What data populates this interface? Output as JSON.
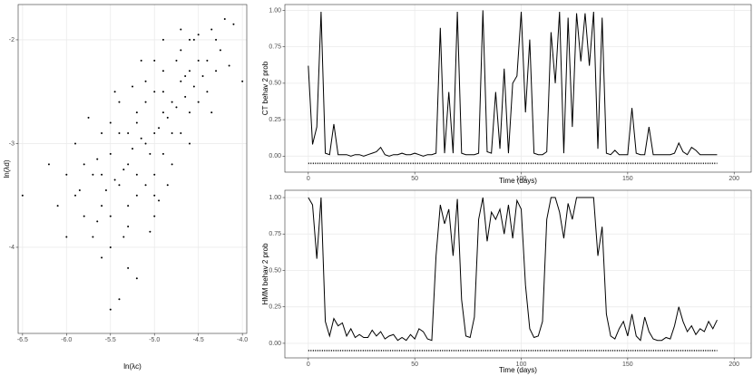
{
  "chart_data": [
    {
      "type": "scatter",
      "x_label": "ln(λc)",
      "y_label": "ln(λd)",
      "color": "#000000",
      "grid": true,
      "xlim": [
        -6.55,
        -3.95
      ],
      "ylim": [
        -4.83,
        -1.66
      ],
      "xticks": [
        -6.5,
        {
          "value": -6,
          "label": "-6.0"
        },
        -5.5,
        {
          "value": -5,
          "label": "-5.0"
        },
        -4.5,
        {
          "value": -4,
          "label": "-4.0"
        }
      ],
      "yticks": [
        -4,
        -3,
        -2
      ],
      "x": [
        -5.1,
        -5.3,
        -4.9,
        -5.0,
        -5.4,
        -4.8,
        -5.2,
        -5.0,
        -4.7,
        -5.5,
        -5.6,
        -4.6,
        -5.1,
        -5.3,
        -4.9,
        -5.2,
        -4.8,
        -5.0,
        -5.4,
        -4.5,
        -5.7,
        -4.4,
        -5.8,
        -4.3,
        -5.9,
        -5.0,
        -4.7,
        -5.3,
        -4.6,
        -5.5,
        -6.2,
        -4.2,
        -6.5,
        -4.1,
        -5.6,
        -5.4,
        -5.2,
        -4.0,
        -6.0,
        -4.9,
        -5.1,
        -5.15,
        -5.05,
        -4.95,
        -5.25,
        -4.85,
        -5.35,
        -4.75,
        -5.45,
        -4.65,
        -5.55,
        -4.55,
        -5.65,
        -4.45,
        -5.2,
        -5.0,
        -4.8,
        -5.4,
        -4.6,
        -5.6,
        -5.1,
        -5.3,
        -4.9,
        -5.7,
        -4.7,
        -5.2,
        -4.5,
        -5.8,
        -4.4,
        -5.0,
        -5.5,
        -4.6,
        -5.9,
        -4.3,
        -5.45,
        -4.85,
        -5.15,
        -5.35,
        -4.75,
        -5.05,
        -5.25,
        -4.95,
        -5.5,
        -4.55,
        -5.75,
        -4.35,
        -5.85,
        -4.25,
        -6.0,
        -4.15,
        -5.6,
        -4.9,
        -5.3,
        -4.7,
        -5.5,
        -4.5,
        -6.1,
        -4.35,
        -5.65,
        -4.65
      ],
      "y": [
        -3.0,
        -3.2,
        -2.7,
        -2.9,
        -3.4,
        -2.6,
        -2.8,
        -3.3,
        -2.4,
        -3.1,
        -3.6,
        -2.3,
        -2.6,
        -2.9,
        -3.1,
        -3.5,
        -2.9,
        -2.5,
        -2.9,
        -2.2,
        -3.3,
        -2.5,
        -3.7,
        -2.0,
        -3.5,
        -3.7,
        -2.1,
        -3.8,
        -2.7,
        -2.8,
        -3.2,
        -1.8,
        -3.5,
        -1.85,
        -4.1,
        -4.5,
        -4.3,
        -2.4,
        -3.9,
        -2.3,
        -3.4,
        -2.95,
        -3.1,
        -2.85,
        -3.05,
        -2.75,
        -3.25,
        -2.65,
        -3.35,
        -2.55,
        -3.45,
        -2.45,
        -3.15,
        -2.35,
        -2.7,
        -3.5,
        -3.2,
        -2.6,
        -3.0,
        -2.9,
        -2.4,
        -3.6,
        -2.5,
        -3.9,
        -2.9,
        -3.3,
        -2.6,
        -3.2,
        -2.2,
        -2.2,
        -3.7,
        -2.0,
        -3.0,
        -2.3,
        -2.5,
        -3.4,
        -2.2,
        -3.9,
        -2.2,
        -3.85,
        -2.45,
        -3.55,
        -4.0,
        -2.0,
        -2.75,
        -2.7,
        -3.45,
        -2.1,
        -3.3,
        -2.25,
        -3.3,
        -2.0,
        -4.2,
        -1.9,
        -4.6,
        -1.95,
        -3.6,
        -1.9,
        -3.75,
        -2.35
      ]
    },
    {
      "type": "line",
      "x_label": "Time (days)",
      "y_label": "CT behav 2 prob",
      "color": "#000000",
      "grid": true,
      "rug_y": -0.05,
      "xlim": [
        -11,
        208
      ],
      "ylim": [
        -0.11,
        1.04
      ],
      "xticks": [
        0,
        50,
        100,
        150,
        200
      ],
      "yticks": [
        {
          "value": 0,
          "label": "0.00"
        },
        {
          "value": 0.25,
          "label": "0.25"
        },
        {
          "value": 0.5,
          "label": "0.50"
        },
        {
          "value": 0.75,
          "label": "0.75"
        },
        {
          "value": 1,
          "label": "1.00"
        }
      ],
      "x": [
        0,
        2,
        4,
        6,
        8,
        10,
        12,
        14,
        16,
        18,
        20,
        22,
        24,
        26,
        28,
        30,
        32,
        34,
        36,
        38,
        40,
        42,
        44,
        46,
        48,
        50,
        52,
        54,
        56,
        58,
        60,
        62,
        64,
        66,
        68,
        70,
        72,
        74,
        76,
        78,
        80,
        82,
        84,
        86,
        88,
        90,
        92,
        94,
        96,
        98,
        100,
        102,
        104,
        106,
        108,
        110,
        112,
        114,
        116,
        118,
        120,
        122,
        124,
        126,
        128,
        130,
        132,
        134,
        136,
        138,
        140,
        142,
        144,
        146,
        148,
        150,
        152,
        154,
        156,
        158,
        160,
        162,
        164,
        166,
        168,
        170,
        172,
        174,
        176,
        178,
        180,
        182,
        184,
        186,
        188,
        190,
        192
      ],
      "values": [
        0.62,
        0.08,
        0.2,
        0.99,
        0.02,
        0.01,
        0.22,
        0.01,
        0.01,
        0.01,
        0.0,
        0.01,
        0.01,
        0.0,
        0.01,
        0.02,
        0.03,
        0.06,
        0.01,
        0.0,
        0.01,
        0.01,
        0.02,
        0.01,
        0.01,
        0.02,
        0.01,
        0.0,
        0.01,
        0.01,
        0.02,
        0.88,
        0.02,
        0.44,
        0.02,
        0.99,
        0.02,
        0.01,
        0.01,
        0.01,
        0.02,
        1.0,
        0.03,
        0.02,
        0.44,
        0.05,
        0.6,
        0.02,
        0.5,
        0.55,
        0.99,
        0.3,
        0.8,
        0.02,
        0.01,
        0.01,
        0.03,
        0.85,
        0.5,
        0.99,
        0.02,
        0.95,
        0.2,
        0.98,
        0.65,
        0.98,
        0.62,
        0.99,
        0.05,
        0.95,
        0.02,
        0.01,
        0.04,
        0.01,
        0.01,
        0.01,
        0.33,
        0.02,
        0.01,
        0.01,
        0.2,
        0.01,
        0.01,
        0.01,
        0.01,
        0.01,
        0.02,
        0.09,
        0.03,
        0.01,
        0.06,
        0.04,
        0.01,
        0.01,
        0.01,
        0.01,
        0.01
      ]
    },
    {
      "type": "line",
      "x_label": "Time (days)",
      "y_label": "HMM behav 2 prob",
      "color": "#000000",
      "grid": true,
      "rug_y": -0.05,
      "xlim": [
        -11,
        208
      ],
      "ylim": [
        -0.1,
        1.05
      ],
      "xticks": [
        0,
        50,
        100,
        150,
        200
      ],
      "yticks": [
        {
          "value": 0,
          "label": "0.00"
        },
        {
          "value": 0.25,
          "label": "0.25"
        },
        {
          "value": 0.5,
          "label": "0.50"
        },
        {
          "value": 0.75,
          "label": "0.75"
        },
        {
          "value": 1,
          "label": "1.00"
        }
      ],
      "x": [
        0,
        2,
        4,
        6,
        8,
        10,
        12,
        14,
        16,
        18,
        20,
        22,
        24,
        26,
        28,
        30,
        32,
        34,
        36,
        38,
        40,
        42,
        44,
        46,
        48,
        50,
        52,
        54,
        56,
        58,
        60,
        62,
        64,
        66,
        68,
        70,
        72,
        74,
        76,
        78,
        80,
        82,
        84,
        86,
        88,
        90,
        92,
        94,
        96,
        98,
        100,
        102,
        104,
        106,
        108,
        110,
        112,
        114,
        116,
        118,
        120,
        122,
        124,
        126,
        128,
        130,
        132,
        134,
        136,
        138,
        140,
        142,
        144,
        146,
        148,
        150,
        152,
        154,
        156,
        158,
        160,
        162,
        164,
        166,
        168,
        170,
        172,
        174,
        176,
        178,
        180,
        182,
        184,
        186,
        188,
        190,
        192
      ],
      "values": [
        1.0,
        0.95,
        0.58,
        1.0,
        0.15,
        0.05,
        0.17,
        0.12,
        0.14,
        0.05,
        0.1,
        0.04,
        0.06,
        0.04,
        0.04,
        0.09,
        0.05,
        0.08,
        0.03,
        0.05,
        0.06,
        0.02,
        0.04,
        0.02,
        0.06,
        0.03,
        0.1,
        0.08,
        0.03,
        0.02,
        0.6,
        0.95,
        0.82,
        0.92,
        0.6,
        0.99,
        0.3,
        0.05,
        0.04,
        0.18,
        0.85,
        1.0,
        0.7,
        0.9,
        0.85,
        0.92,
        0.75,
        0.95,
        0.72,
        0.98,
        0.92,
        0.4,
        0.1,
        0.04,
        0.05,
        0.15,
        0.85,
        1.0,
        1.0,
        0.9,
        0.72,
        0.96,
        0.85,
        1.0,
        1.0,
        1.0,
        1.0,
        1.0,
        0.6,
        0.8,
        0.2,
        0.05,
        0.03,
        0.1,
        0.15,
        0.05,
        0.2,
        0.05,
        0.02,
        0.18,
        0.08,
        0.03,
        0.02,
        0.02,
        0.04,
        0.03,
        0.12,
        0.25,
        0.15,
        0.08,
        0.12,
        0.06,
        0.1,
        0.08,
        0.15,
        0.1,
        0.16
      ]
    }
  ]
}
